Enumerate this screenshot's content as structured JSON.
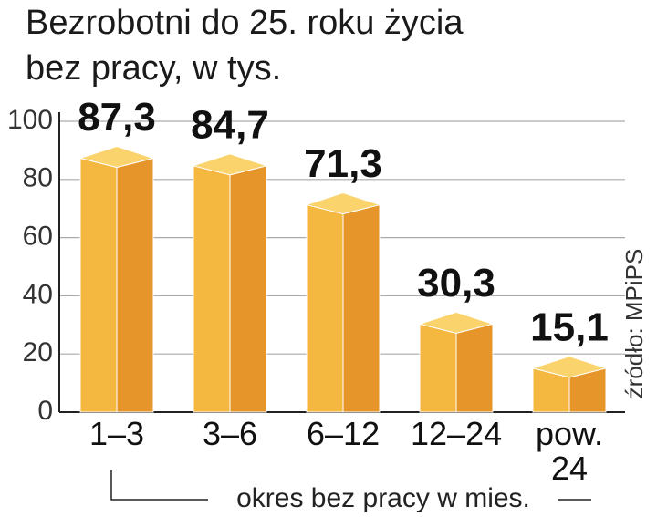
{
  "chart_data": {
    "type": "bar3d",
    "title": "Bezrobotni do 25. roku życia",
    "subtitle": "bez pracy, w tys.",
    "categories": [
      "1–3",
      "3–6",
      "6–12",
      "12–24",
      "pow. 24"
    ],
    "values": [
      87.3,
      84.7,
      71.3,
      30.3,
      15.1
    ],
    "value_labels": [
      "87,3",
      "84,7",
      "71,3",
      "30,3",
      "15,1"
    ],
    "x_label": "okres bez pracy w mies.",
    "source": "źródło: MPiPS",
    "colors": {
      "left": "#f4b840",
      "right": "#e5952a",
      "top": "#fad36d"
    },
    "ylim": [
      0,
      100
    ],
    "yticks": [
      0,
      20,
      40,
      60,
      80,
      100
    ],
    "grid": true
  }
}
